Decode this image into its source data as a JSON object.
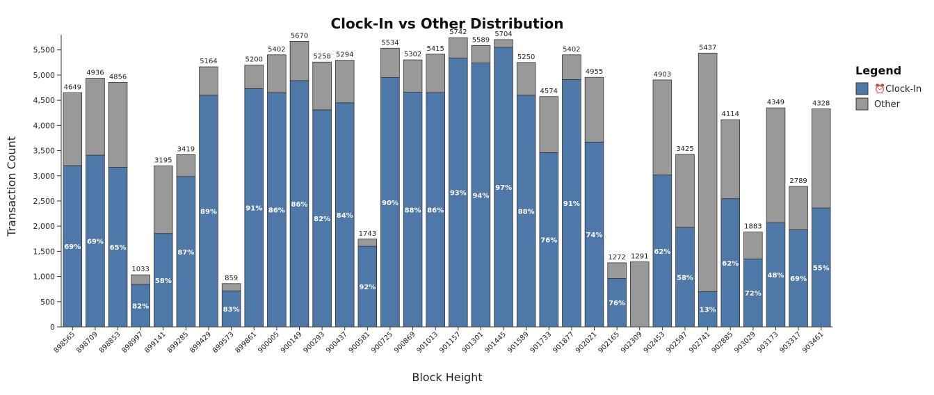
{
  "chart_data": {
    "type": "bar",
    "stacked": true,
    "title": "Clock-In vs Other Distribution",
    "xlabel": "Block Height",
    "ylabel": "Transaction Count",
    "ylim": [
      0,
      5800
    ],
    "y_ticks": [
      0,
      500,
      1000,
      1500,
      2000,
      2500,
      3000,
      3500,
      4000,
      4500,
      5000,
      5500
    ],
    "y_tick_labels": [
      "0",
      "500",
      "1,000",
      "1,500",
      "2,000",
      "2,500",
      "3,000",
      "3,500",
      "4,000",
      "4,500",
      "5,000",
      "5,500"
    ],
    "grid": false,
    "legend": {
      "title": "Legend",
      "placement": "top-right"
    },
    "categories": [
      "898565",
      "898709",
      "898853",
      "898997",
      "899141",
      "899285",
      "899429",
      "899573",
      "899861",
      "900005",
      "900149",
      "900293",
      "900437",
      "900581",
      "900725",
      "900869",
      "901013",
      "901157",
      "901301",
      "901445",
      "901589",
      "901733",
      "901877",
      "902021",
      "902165",
      "902309",
      "902453",
      "902597",
      "902741",
      "902885",
      "903029",
      "903173",
      "903317",
      "903461"
    ],
    "totals": [
      4649,
      4936,
      4856,
      1033,
      3195,
      3419,
      5164,
      859,
      5200,
      5402,
      5670,
      5258,
      5294,
      1743,
      5534,
      5302,
      5415,
      5742,
      5589,
      5704,
      5250,
      4574,
      5402,
      4955,
      1272,
      1291,
      4903,
      3425,
      5437,
      4114,
      1883,
      4349,
      2789,
      4328
    ],
    "percent_labels": [
      "69%",
      "69%",
      "65%",
      "82%",
      "58%",
      "87%",
      "89%",
      "83%",
      "91%",
      "86%",
      "86%",
      "82%",
      "84%",
      "92%",
      "90%",
      "88%",
      "86%",
      "93%",
      "94%",
      "97%",
      "88%",
      "76%",
      "91%",
      "74%",
      "76%",
      "",
      "62%",
      "58%",
      "13%",
      "62%",
      "72%",
      "48%",
      "69%",
      "55%"
    ],
    "series": [
      {
        "name": "⏰Clock-In",
        "color": "#4e78a8",
        "values": [
          3200,
          3410,
          3170,
          845,
          1855,
          2985,
          4600,
          715,
          4730,
          4650,
          4890,
          4310,
          4450,
          1600,
          4950,
          4660,
          4650,
          5340,
          5240,
          5550,
          4600,
          3460,
          4910,
          3670,
          960,
          0,
          3015,
          1975,
          700,
          2545,
          1350,
          2070,
          1930,
          2360
        ]
      },
      {
        "name": "Other",
        "color": "#999999",
        "values": [
          1449,
          1526,
          1686,
          188,
          1340,
          434,
          564,
          144,
          470,
          752,
          780,
          948,
          844,
          143,
          584,
          642,
          765,
          402,
          349,
          154,
          650,
          1114,
          492,
          1285,
          312,
          1291,
          1888,
          1450,
          4737,
          1569,
          533,
          2279,
          859,
          1968
        ]
      }
    ]
  }
}
